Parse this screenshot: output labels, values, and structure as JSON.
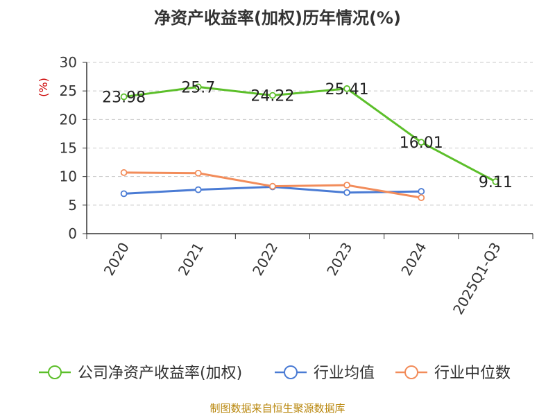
{
  "chart_data": {
    "type": "line",
    "title": "净资产收益率(加权)历年情况(%)",
    "ylabel": "(%)",
    "xlabel": "",
    "categories": [
      "2020",
      "2021",
      "2022",
      "2023",
      "2024",
      "2025Q1-Q3"
    ],
    "ylim": [
      0,
      30
    ],
    "yticks": [
      0,
      5,
      10,
      15,
      20,
      25,
      30
    ],
    "grid": true,
    "legend_position": "bottom",
    "series": [
      {
        "name": "公司净资产收益率(加权)",
        "color": "#5cbf2a",
        "values": [
          23.98,
          25.7,
          24.22,
          25.41,
          16.01,
          9.11
        ],
        "labels": [
          "23.98",
          "25.7",
          "24.22",
          "25.41",
          "16.01",
          "9.11"
        ]
      },
      {
        "name": "行业均值",
        "color": "#4a7bd4",
        "values": [
          7.0,
          7.7,
          8.2,
          7.2,
          7.4,
          null
        ]
      },
      {
        "name": "行业中位数",
        "color": "#f28c5a",
        "values": [
          10.7,
          10.6,
          8.3,
          8.5,
          6.3,
          null
        ]
      }
    ]
  },
  "source": "制图数据来自恒生聚源数据库"
}
